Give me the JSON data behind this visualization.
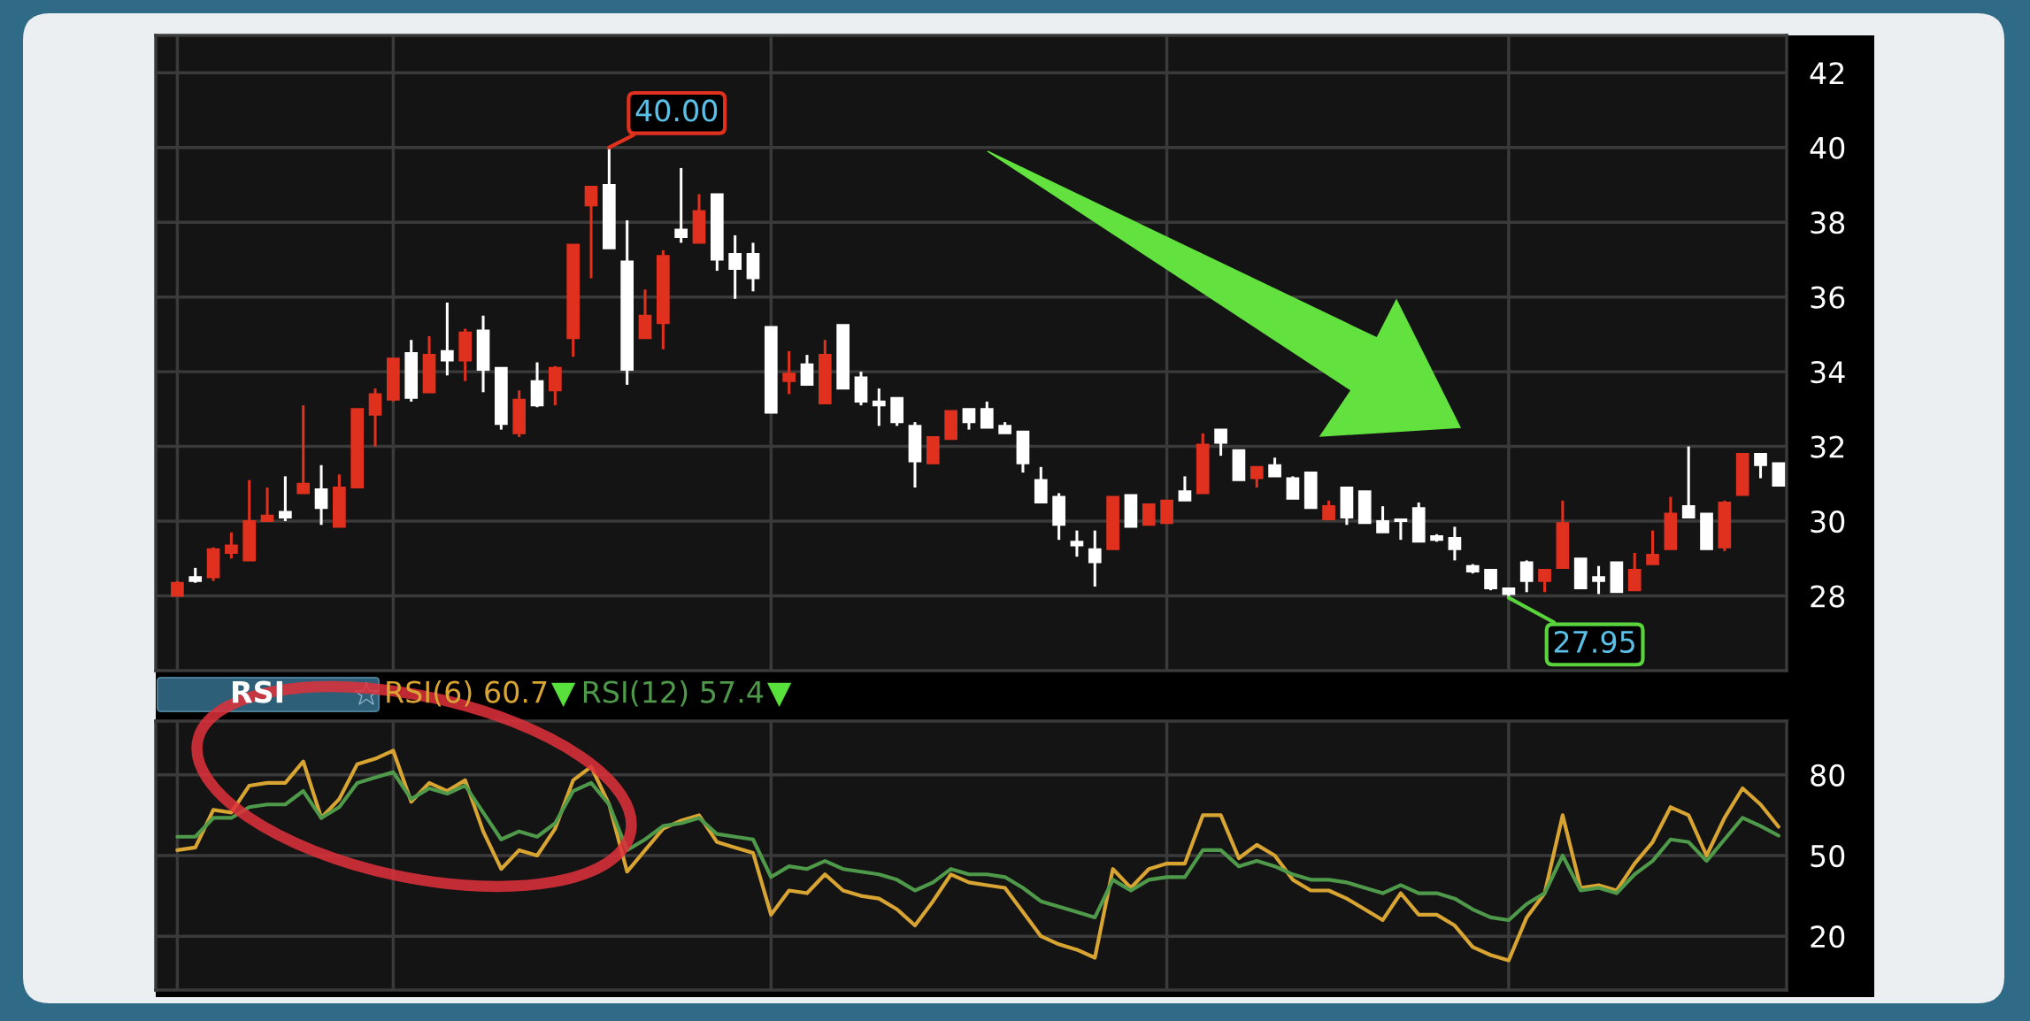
{
  "chart_data": [
    {
      "type": "candlestick",
      "categories": [
        null,
        null,
        null,
        null,
        null,
        null,
        null,
        null,
        null,
        null,
        null,
        null,
        null,
        null,
        null,
        null,
        null,
        null,
        null,
        null,
        null,
        null,
        null,
        null,
        null,
        null,
        null,
        null,
        null,
        null,
        null,
        null,
        null,
        null,
        null,
        null,
        null,
        null,
        null,
        null,
        null,
        null,
        null,
        null,
        null,
        null,
        null,
        null,
        null,
        null,
        null,
        null,
        null,
        null,
        null,
        null,
        null,
        null,
        null,
        null,
        null,
        null,
        null,
        null,
        null,
        null,
        null,
        null,
        null,
        null,
        null,
        null,
        null,
        null,
        null,
        null,
        null,
        null,
        null,
        null,
        null,
        null,
        null,
        null,
        null,
        null,
        null,
        null,
        null,
        null
      ],
      "ohlc": [
        [
          28.0,
          28.4,
          28.0,
          28.35
        ],
        [
          28.5,
          28.75,
          28.35,
          28.4
        ],
        [
          28.5,
          29.3,
          28.4,
          29.25
        ],
        [
          29.15,
          29.7,
          29.0,
          29.35
        ],
        [
          28.95,
          31.1,
          28.95,
          30.0
        ],
        [
          30.0,
          30.9,
          30.0,
          30.15
        ],
        [
          30.25,
          31.2,
          30.0,
          30.1
        ],
        [
          30.75,
          33.1,
          30.75,
          31.0
        ],
        [
          30.85,
          31.5,
          29.9,
          30.35
        ],
        [
          29.85,
          31.25,
          29.85,
          30.9
        ],
        [
          30.9,
          33.0,
          30.9,
          33.0
        ],
        [
          32.85,
          33.55,
          32.0,
          33.4
        ],
        [
          33.25,
          34.35,
          33.2,
          34.35
        ],
        [
          34.5,
          34.85,
          33.2,
          33.3
        ],
        [
          33.45,
          34.95,
          33.45,
          34.45
        ],
        [
          34.55,
          35.85,
          33.9,
          34.3
        ],
        [
          34.3,
          35.15,
          33.75,
          35.05
        ],
        [
          35.1,
          35.5,
          33.45,
          34.05
        ],
        [
          34.1,
          34.1,
          32.45,
          32.6
        ],
        [
          32.35,
          33.5,
          32.25,
          33.25
        ],
        [
          33.75,
          34.25,
          33.05,
          33.1
        ],
        [
          33.5,
          34.15,
          33.1,
          34.1
        ],
        [
          34.9,
          37.4,
          34.4,
          37.4
        ],
        [
          38.45,
          38.95,
          36.5,
          38.95
        ],
        [
          39.0,
          40.0,
          37.3,
          37.3
        ],
        [
          36.95,
          38.05,
          33.65,
          34.05
        ],
        [
          34.9,
          36.2,
          34.9,
          35.5
        ],
        [
          35.3,
          37.25,
          34.6,
          37.1
        ],
        [
          37.8,
          39.45,
          37.45,
          37.6
        ],
        [
          37.45,
          38.75,
          37.45,
          38.3
        ],
        [
          38.75,
          38.75,
          36.7,
          37.0
        ],
        [
          37.15,
          37.65,
          35.95,
          36.75
        ],
        [
          37.15,
          37.45,
          36.15,
          36.5
        ],
        [
          35.2,
          35.2,
          32.9,
          32.9
        ],
        [
          33.75,
          34.55,
          33.4,
          33.95
        ],
        [
          34.2,
          34.45,
          33.65,
          33.65
        ],
        [
          33.15,
          34.85,
          33.15,
          34.45
        ],
        [
          35.25,
          35.25,
          33.55,
          33.55
        ],
        [
          33.85,
          34.0,
          33.1,
          33.2
        ],
        [
          33.2,
          33.55,
          32.55,
          33.1
        ],
        [
          33.3,
          33.3,
          32.55,
          32.65
        ],
        [
          32.55,
          32.65,
          30.9,
          31.6
        ],
        [
          31.55,
          32.25,
          31.55,
          32.25
        ],
        [
          32.2,
          32.95,
          32.2,
          32.95
        ],
        [
          33.0,
          33.0,
          32.45,
          32.65
        ],
        [
          33.0,
          33.2,
          32.5,
          32.5
        ],
        [
          32.55,
          32.65,
          32.35,
          32.35
        ],
        [
          32.4,
          32.4,
          31.3,
          31.55
        ],
        [
          31.1,
          31.45,
          30.5,
          30.5
        ],
        [
          30.65,
          30.75,
          29.5,
          29.9
        ],
        [
          29.45,
          29.75,
          29.05,
          29.35
        ],
        [
          29.25,
          29.75,
          28.25,
          28.9
        ],
        [
          29.25,
          30.65,
          29.25,
          30.65
        ],
        [
          30.7,
          30.7,
          29.85,
          29.85
        ],
        [
          29.9,
          30.45,
          29.9,
          30.45
        ],
        [
          29.95,
          30.55,
          29.95,
          30.55
        ],
        [
          30.8,
          31.2,
          30.55,
          30.55
        ],
        [
          30.75,
          32.35,
          30.75,
          32.05
        ],
        [
          32.45,
          32.45,
          31.75,
          32.1
        ],
        [
          31.9,
          31.9,
          31.1,
          31.1
        ],
        [
          31.15,
          31.45,
          30.9,
          31.45
        ],
        [
          31.5,
          31.7,
          31.2,
          31.2
        ],
        [
          31.15,
          31.2,
          30.6,
          30.6
        ],
        [
          31.3,
          31.3,
          30.35,
          30.35
        ],
        [
          30.05,
          30.55,
          30.05,
          30.4
        ],
        [
          30.9,
          30.9,
          29.9,
          30.1
        ],
        [
          30.8,
          30.8,
          29.95,
          29.95
        ],
        [
          30.0,
          30.4,
          29.7,
          29.7
        ],
        [
          30.05,
          30.05,
          29.5,
          30.0
        ],
        [
          30.35,
          30.5,
          29.45,
          29.45
        ],
        [
          29.6,
          29.65,
          29.45,
          29.5
        ],
        [
          29.55,
          29.85,
          28.95,
          29.25
        ],
        [
          28.8,
          28.85,
          28.6,
          28.65
        ],
        [
          28.7,
          28.7,
          28.15,
          28.2
        ],
        [
          28.2,
          28.2,
          27.95,
          28.05
        ],
        [
          28.9,
          28.95,
          28.1,
          28.4
        ],
        [
          28.4,
          28.7,
          28.1,
          28.7
        ],
        [
          28.75,
          30.55,
          28.75,
          29.95
        ],
        [
          29.0,
          29.0,
          28.2,
          28.2
        ],
        [
          28.5,
          28.8,
          28.05,
          28.4
        ],
        [
          28.9,
          28.9,
          28.1,
          28.1
        ],
        [
          28.15,
          29.15,
          28.15,
          28.7
        ],
        [
          28.85,
          29.75,
          28.85,
          29.1
        ],
        [
          29.25,
          30.65,
          29.25,
          30.2
        ],
        [
          30.4,
          32.0,
          30.1,
          30.1
        ],
        [
          30.2,
          30.2,
          29.25,
          29.25
        ],
        [
          29.3,
          30.55,
          29.2,
          30.5
        ],
        [
          30.7,
          31.8,
          30.7,
          31.8
        ],
        [
          31.8,
          31.8,
          31.15,
          31.5
        ],
        [
          31.55,
          31.55,
          30.95,
          30.95
        ]
      ],
      "colors": [
        "#e0301e",
        "#ffffff",
        "#e0301e",
        "#e0301e",
        "#e0301e",
        "#e0301e",
        "#ffffff",
        "#e0301e",
        "#ffffff",
        "#e0301e",
        "#e0301e",
        "#e0301e",
        "#e0301e",
        "#ffffff",
        "#e0301e",
        "#ffffff",
        "#e0301e",
        "#ffffff",
        "#ffffff",
        "#e0301e",
        "#ffffff",
        "#e0301e",
        "#e0301e",
        "#e0301e",
        "#ffffff",
        "#ffffff",
        "#e0301e",
        "#e0301e",
        "#ffffff",
        "#e0301e",
        "#ffffff",
        "#ffffff",
        "#ffffff",
        "#ffffff",
        "#e0301e",
        "#ffffff",
        "#e0301e",
        "#ffffff",
        "#ffffff",
        "#ffffff",
        "#ffffff",
        "#ffffff",
        "#e0301e",
        "#e0301e",
        "#ffffff",
        "#ffffff",
        "#ffffff",
        "#ffffff",
        "#ffffff",
        "#ffffff",
        "#ffffff",
        "#ffffff",
        "#e0301e",
        "#ffffff",
        "#e0301e",
        "#e0301e",
        "#ffffff",
        "#e0301e",
        "#ffffff",
        "#ffffff",
        "#e0301e",
        "#ffffff",
        "#ffffff",
        "#ffffff",
        "#e0301e",
        "#ffffff",
        "#ffffff",
        "#ffffff",
        "#ffffff",
        "#ffffff",
        "#ffffff",
        "#ffffff",
        "#ffffff",
        "#ffffff",
        "#ffffff",
        "#ffffff",
        "#e0301e",
        "#e0301e",
        "#ffffff",
        "#ffffff",
        "#ffffff",
        "#e0301e",
        "#e0301e",
        "#e0301e",
        "#ffffff",
        "#ffffff",
        "#e0301e",
        "#e0301e",
        "#ffffff",
        "#ffffff"
      ],
      "ylim": [
        26,
        43
      ],
      "yticks": [
        28,
        30,
        32,
        34,
        36,
        38,
        40,
        42
      ],
      "grid": true,
      "tick_labels": "y",
      "annotations": [
        "40.00",
        "27.95"
      ]
    },
    {
      "type": "line",
      "title": "RSI",
      "categories": [
        null,
        null,
        null,
        null,
        null,
        null,
        null,
        null,
        null,
        null,
        null,
        null,
        null,
        null,
        null,
        null,
        null,
        null,
        null,
        null,
        null,
        null,
        null,
        null,
        null,
        null,
        null,
        null,
        null,
        null,
        null,
        null,
        null,
        null,
        null,
        null,
        null,
        null,
        null,
        null,
        null,
        null,
        null,
        null,
        null,
        null,
        null,
        null,
        null,
        null,
        null,
        null,
        null,
        null,
        null,
        null,
        null,
        null,
        null,
        null,
        null,
        null,
        null,
        null,
        null,
        null,
        null,
        null,
        null,
        null,
        null,
        null,
        null,
        null,
        null,
        null,
        null,
        null,
        null,
        null,
        null,
        null,
        null,
        null,
        null,
        null,
        null,
        null,
        null,
        null
      ],
      "series": [
        {
          "name": "RSI(6) 60.7",
          "color": "#d9a532",
          "values": [
            52,
            53,
            67,
            66,
            76,
            77,
            77,
            85,
            64,
            71,
            84,
            86,
            89,
            70,
            77,
            74,
            78,
            59,
            45,
            52,
            50,
            60,
            78,
            83,
            69,
            44,
            52,
            60,
            63,
            65,
            55,
            53,
            51,
            28,
            37,
            36,
            43,
            37,
            35,
            34,
            30,
            24,
            33,
            43,
            40,
            39,
            38,
            29,
            20,
            17,
            15,
            12,
            45,
            38,
            45,
            47,
            47,
            65,
            65,
            49,
            54,
            50,
            41,
            37,
            37,
            34,
            30,
            26,
            36,
            28,
            28,
            24,
            16,
            13,
            11,
            27,
            36,
            65,
            38,
            39,
            37,
            47,
            55,
            68,
            65,
            50,
            64,
            75,
            69,
            60.7
          ]
        },
        {
          "name": "RSI(12) 57.4",
          "color": "#4f9a4a",
          "values": [
            57,
            57,
            64,
            64,
            68,
            69,
            69,
            74,
            64,
            68,
            77,
            79,
            81,
            71,
            75,
            73,
            76,
            66,
            56,
            59,
            57,
            62,
            74,
            77,
            69,
            52,
            56,
            61,
            62,
            64,
            58,
            57,
            56,
            42,
            46,
            45,
            48,
            45,
            44,
            43,
            41,
            37,
            40,
            45,
            43,
            43,
            42,
            38,
            33,
            31,
            29,
            27,
            41,
            37,
            41,
            42,
            42,
            52,
            52,
            46,
            48,
            46,
            43,
            41,
            41,
            40,
            38,
            36,
            39,
            36,
            36,
            34,
            30,
            27,
            26,
            32,
            36,
            50,
            37,
            38,
            36,
            43,
            48,
            56,
            55,
            48,
            56,
            64,
            61,
            57.4
          ]
        }
      ],
      "ylim": [
        0,
        100
      ],
      "yticks": [
        20,
        50,
        80
      ],
      "grid": true,
      "tick_labels": "y",
      "legend": "top left"
    }
  ]
}
